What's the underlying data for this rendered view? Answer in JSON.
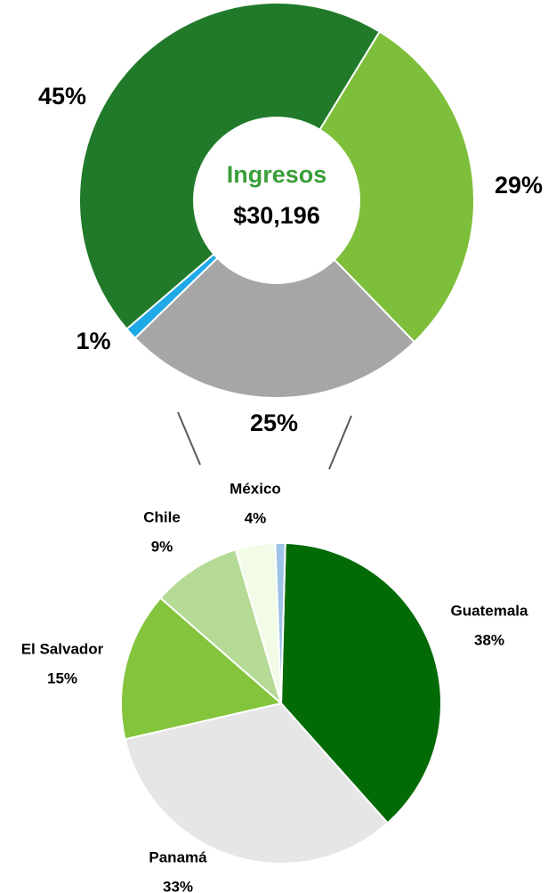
{
  "chart_data": [
    {
      "type": "donut",
      "values": [
        29,
        25,
        1,
        45
      ],
      "value_labels": [
        "29%",
        "25%",
        "1%",
        "45%"
      ],
      "colors": [
        "#7dbf3a",
        "#a6a6a6",
        "#1fa9e6",
        "#217a2a"
      ],
      "center_title": "Ingresos",
      "center_value": "$30,196"
    },
    {
      "type": "pie",
      "categories": [
        "Guatemala",
        "Panamá",
        "El Salvador",
        "Chile",
        "México",
        null
      ],
      "values": [
        38,
        33,
        15,
        9,
        4,
        1
      ],
      "value_labels": [
        "38%",
        "33%",
        "15%",
        "9%",
        "4%",
        null
      ],
      "colors": [
        "#036b06",
        "#e6e6e6",
        "#84c43c",
        "#b5da96",
        "#f1fbe6",
        "#9dc3e6"
      ]
    }
  ]
}
